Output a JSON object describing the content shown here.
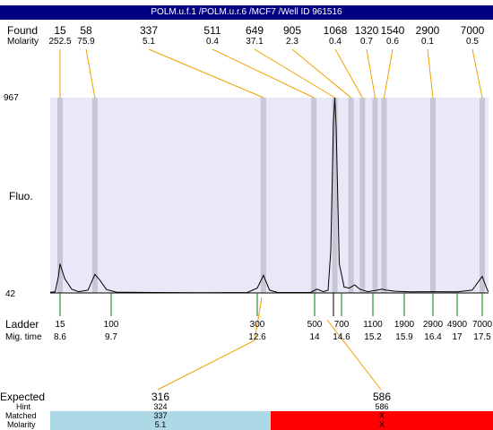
{
  "title": "POLM.u.f.1 /POLM.u.r.6 /MCF7 /Well ID 961516",
  "found_label": "Found",
  "molarity_label": "Molarity",
  "fluo_label": "Fluo.",
  "ladder_label": "Ladder",
  "migtime_label": "Mig. time",
  "chart_data": {
    "type": "line",
    "ylim": [
      42,
      967
    ],
    "y_ticks": [
      "967",
      "42"
    ],
    "found": [
      {
        "size": "15",
        "molarity": "252.5",
        "mig_time": 8.6
      },
      {
        "size": "58",
        "molarity": "75.9",
        "mig_time": 9.35
      },
      {
        "size": "337",
        "molarity": "5.1",
        "mig_time": 12.75
      },
      {
        "size": "511",
        "molarity": "0.4",
        "mig_time": 13.98
      },
      {
        "size": "649",
        "molarity": "37.1",
        "mig_time": 14.45
      },
      {
        "size": "905",
        "molarity": "2.3",
        "mig_time": 14.78
      },
      {
        "size": "1068",
        "molarity": "0.4",
        "mig_time": 15.0
      },
      {
        "size": "1320",
        "molarity": "0.7",
        "mig_time": 15.25
      },
      {
        "size": "1540",
        "molarity": "0.6",
        "mig_time": 15.45
      },
      {
        "size": "2900",
        "molarity": "0.1",
        "mig_time": 16.4
      },
      {
        "size": "7000",
        "molarity": "0.5",
        "mig_time": 17.5
      }
    ],
    "ladder": [
      {
        "size": "15",
        "mig_time": "8.6"
      },
      {
        "size": "100",
        "mig_time": "9.7"
      },
      {
        "size": "300",
        "mig_time": "12.6"
      },
      {
        "size": "500",
        "mig_time": "14"
      },
      {
        "size": "700",
        "mig_time": "14.6"
      },
      {
        "size": "1100",
        "mig_time": "15.2"
      },
      {
        "size": "1900",
        "mig_time": "15.9"
      },
      {
        "size": "2900",
        "mig_time": "16.4"
      },
      {
        "size": "4900",
        "mig_time": "17"
      },
      {
        "size": "7000",
        "mig_time": "17.5"
      }
    ],
    "trace": [
      [
        8.0,
        45
      ],
      [
        8.3,
        47
      ],
      [
        8.5,
        120
      ],
      [
        8.6,
        180
      ],
      [
        8.7,
        110
      ],
      [
        8.85,
        60
      ],
      [
        9.0,
        48
      ],
      [
        9.2,
        55
      ],
      [
        9.35,
        130
      ],
      [
        9.45,
        105
      ],
      [
        9.6,
        58
      ],
      [
        9.8,
        46
      ],
      [
        10.5,
        44
      ],
      [
        11.5,
        43
      ],
      [
        12.4,
        44
      ],
      [
        12.6,
        65
      ],
      [
        12.75,
        125
      ],
      [
        12.9,
        55
      ],
      [
        13.1,
        44
      ],
      [
        13.9,
        44
      ],
      [
        14.05,
        60
      ],
      [
        14.2,
        48
      ],
      [
        14.3,
        55
      ],
      [
        14.36,
        240
      ],
      [
        14.42,
        850
      ],
      [
        14.45,
        967
      ],
      [
        14.48,
        830
      ],
      [
        14.55,
        180
      ],
      [
        14.65,
        70
      ],
      [
        14.75,
        65
      ],
      [
        14.85,
        80
      ],
      [
        14.95,
        60
      ],
      [
        15.1,
        48
      ],
      [
        15.3,
        55
      ],
      [
        15.4,
        60
      ],
      [
        15.5,
        55
      ],
      [
        15.7,
        50
      ],
      [
        16.0,
        47
      ],
      [
        16.4,
        48
      ],
      [
        17.0,
        47
      ],
      [
        17.3,
        55
      ],
      [
        17.5,
        120
      ],
      [
        17.65,
        80
      ],
      [
        17.75,
        55
      ],
      [
        17.8,
        48
      ]
    ],
    "expected": [
      {
        "label": "316",
        "hint": "324",
        "matched": "337",
        "molarity": "5.1",
        "color": "#add8e6"
      },
      {
        "label": "586",
        "hint": "586",
        "matched": "X",
        "molarity": "X",
        "color": "#ff0000"
      }
    ]
  },
  "expected_label": "Expected",
  "hint_label": "Hint",
  "matched_label": "Matched",
  "molarity_label2": "Molarity",
  "colors": {
    "title_bg": "#000080",
    "plot_bg": "#e8e8f8",
    "band": "#c8c8d4",
    "leader": "#f0a000",
    "ladder_tick": "#008000"
  }
}
